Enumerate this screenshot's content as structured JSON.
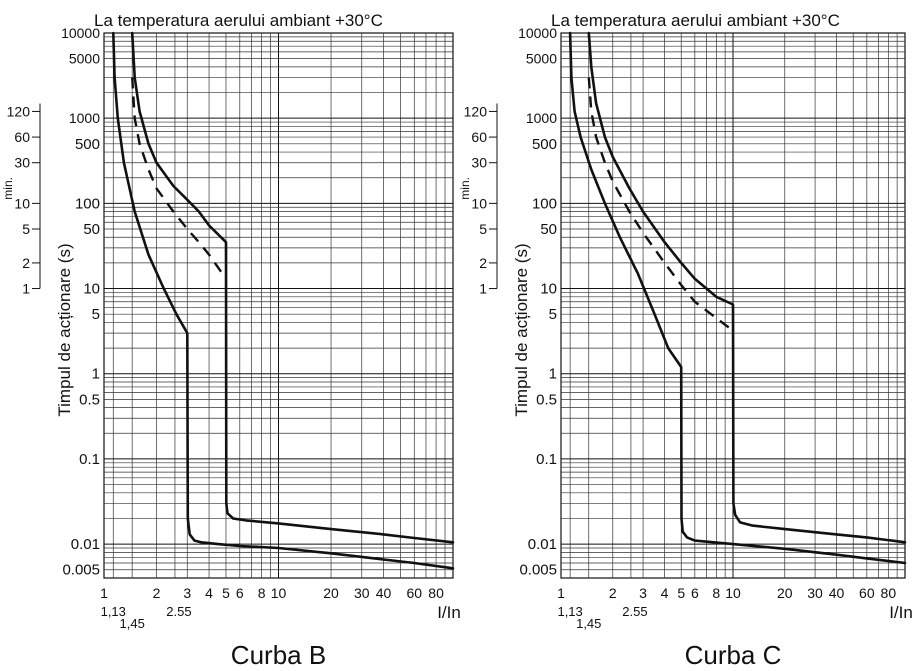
{
  "chart_data": [
    {
      "type": "line",
      "header": "La temperatura aerului ambiant +30°C",
      "caption": "Curba B",
      "ylabel": "Timpul de acționare (s)",
      "xlabel": "I/In",
      "minutes_label": "min.",
      "x_scale": "log",
      "y_scale": "log",
      "xlim": [
        1,
        100
      ],
      "ylim": [
        0.004,
        10000
      ],
      "x_ticks": [
        "1",
        "2",
        "3",
        "4",
        "5",
        "6",
        "8",
        "10",
        "20",
        "30",
        "40",
        "60",
        "80"
      ],
      "x_sub_ticks": [
        "1,13",
        "1,45",
        "2.55"
      ],
      "y_ticks": [
        "10000",
        "5000",
        "1000",
        "500",
        "100",
        "50",
        "10",
        "5",
        "1",
        "0.5",
        "0.1",
        "0.01",
        "0.005"
      ],
      "minute_ticks": [
        "120",
        "60",
        "30",
        "10",
        "5",
        "2",
        "1"
      ],
      "series": [
        {
          "style": "solid",
          "x": [
            1.13,
            1.15,
            1.2,
            1.3,
            1.5,
            1.8,
            2.2,
            2.6,
            3.0,
            3.0,
            3.02,
            3.1,
            3.3,
            3.6,
            4.5,
            6,
            10,
            20,
            40,
            60,
            100
          ],
          "y": [
            10000,
            3000,
            1000,
            300,
            80,
            25,
            10,
            5,
            3,
            3,
            0.02,
            0.013,
            0.011,
            0.0105,
            0.01,
            0.0095,
            0.009,
            0.0078,
            0.0066,
            0.006,
            0.0052
          ]
        },
        {
          "style": "solid",
          "x": [
            1.45,
            1.5,
            1.6,
            1.8,
            2.0,
            2.5,
            3.0,
            3.5,
            4.0,
            5.0,
            5.0,
            5.02,
            5.1,
            5.5,
            6.5,
            10,
            20,
            40,
            60,
            100
          ],
          "y": [
            10000,
            3000,
            1200,
            500,
            300,
            160,
            110,
            80,
            55,
            35,
            35,
            0.03,
            0.023,
            0.02,
            0.019,
            0.0175,
            0.015,
            0.013,
            0.0118,
            0.0105
          ]
        },
        {
          "style": "dashed",
          "x": [
            1.45,
            1.5,
            1.6,
            1.8,
            2.0,
            2.5,
            3.0,
            3.5,
            4.0,
            5.0
          ],
          "y": [
            3000,
            1000,
            500,
            250,
            150,
            80,
            50,
            35,
            25,
            13
          ]
        }
      ]
    },
    {
      "type": "line",
      "header": "La temperatura aerului ambiant +30°C",
      "caption": "Curba C",
      "ylabel": "Timpul de acționare (s)",
      "xlabel": "I/In",
      "minutes_label": "min.",
      "x_scale": "log",
      "y_scale": "log",
      "xlim": [
        1,
        100
      ],
      "ylim": [
        0.004,
        10000
      ],
      "x_ticks": [
        "1",
        "2",
        "3",
        "4",
        "5",
        "6",
        "8",
        "10",
        "20",
        "30",
        "40",
        "60",
        "80"
      ],
      "x_sub_ticks": [
        "1,13",
        "1,45",
        "2.55"
      ],
      "y_ticks": [
        "10000",
        "5000",
        "1000",
        "500",
        "100",
        "50",
        "10",
        "5",
        "1",
        "0.5",
        "0.1",
        "0.01",
        "0.005"
      ],
      "minute_ticks": [
        "120",
        "60",
        "30",
        "10",
        "5",
        "2",
        "1"
      ],
      "series": [
        {
          "style": "solid",
          "x": [
            1.13,
            1.15,
            1.2,
            1.3,
            1.5,
            1.8,
            2.2,
            2.8,
            3.5,
            4.2,
            5.0,
            5.0,
            5.02,
            5.1,
            5.4,
            6,
            10,
            20,
            40,
            60,
            100
          ],
          "y": [
            10000,
            3000,
            1200,
            600,
            250,
            100,
            40,
            15,
            5,
            2,
            1.2,
            1.2,
            0.02,
            0.014,
            0.012,
            0.011,
            0.01,
            0.0088,
            0.0075,
            0.0068,
            0.006
          ]
        },
        {
          "style": "solid",
          "x": [
            1.45,
            1.5,
            1.6,
            1.8,
            2.0,
            2.5,
            3.0,
            4.0,
            5.0,
            6.0,
            8.0,
            10,
            10,
            10.05,
            10.3,
            11,
            13,
            20,
            40,
            60,
            100
          ],
          "y": [
            10000,
            4000,
            1500,
            600,
            350,
            150,
            80,
            35,
            20,
            13,
            8,
            6.5,
            6.5,
            0.03,
            0.022,
            0.018,
            0.0165,
            0.015,
            0.013,
            0.012,
            0.0105
          ]
        },
        {
          "style": "dashed",
          "x": [
            1.45,
            1.5,
            1.6,
            1.8,
            2.0,
            2.5,
            3.0,
            4.0,
            5.0,
            6.0,
            8.0,
            10
          ],
          "y": [
            3000,
            1200,
            600,
            300,
            180,
            80,
            45,
            20,
            11,
            7,
            4.5,
            3.2
          ]
        }
      ]
    }
  ]
}
